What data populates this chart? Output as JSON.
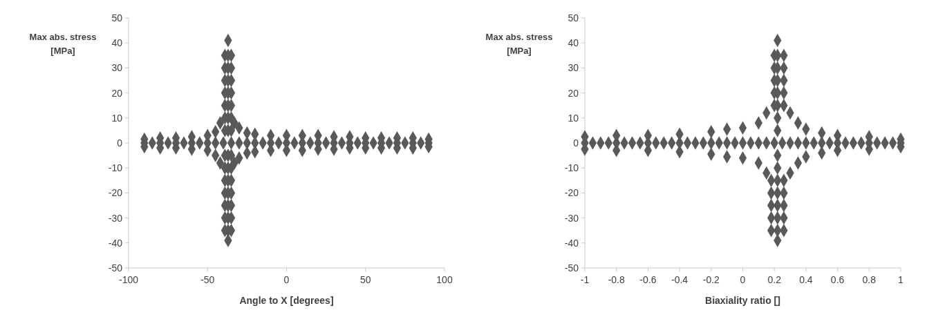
{
  "chart_data": [
    {
      "type": "scatter",
      "xlabel": "Angle to X [degrees]",
      "ylabel": "Max abs. stress\n[MPa]",
      "xlim": [
        -100,
        100
      ],
      "xticks": [
        -100,
        -50,
        0,
        50,
        100
      ],
      "ylim": [
        -50,
        50
      ],
      "yticks": [
        -50,
        -40,
        -30,
        -20,
        -10,
        0,
        10,
        20,
        30,
        40,
        50
      ],
      "grid": false,
      "marker": "diamond",
      "series": [
        {
          "color": "#595959",
          "x": [
            -90,
            -85,
            -80,
            -75,
            -70,
            -65,
            -60,
            -55,
            -50,
            -45,
            -40,
            -35,
            -30,
            -25,
            -20,
            -15,
            -10,
            -5,
            0,
            5,
            10,
            15,
            20,
            25,
            30,
            35,
            40,
            45,
            50,
            55,
            60,
            65,
            70,
            75,
            80,
            85,
            90,
            -90,
            -80,
            -70,
            -60,
            -50,
            -45,
            -30,
            -25,
            -20,
            -10,
            0,
            10,
            20,
            30,
            40,
            50,
            60,
            70,
            80,
            90,
            -90,
            -80,
            -70,
            -60,
            -50,
            -45,
            -30,
            -25,
            -20,
            -10,
            0,
            10,
            20,
            30,
            40,
            50,
            60,
            70,
            80,
            90,
            -39,
            -37,
            -35,
            -39,
            -37,
            -35,
            -39,
            -37,
            -35,
            -39,
            -37,
            -35,
            -39,
            -37,
            -35,
            -39,
            -37,
            -35,
            -39,
            -37,
            -35,
            -37,
            -39,
            -37,
            -35,
            -39,
            -37,
            -35,
            -39,
            -37,
            -35,
            -39,
            -37,
            -35,
            -39,
            -37,
            -35,
            -39,
            -37,
            -35,
            -39,
            -37,
            -35,
            -37,
            -42,
            -33,
            -42,
            -33
          ],
          "values": [
            0,
            0,
            0,
            0,
            0,
            0,
            0,
            0,
            0,
            0,
            0,
            0,
            0,
            0,
            0,
            0,
            0,
            0,
            0,
            0,
            0,
            0,
            0,
            0,
            0,
            0,
            0,
            0,
            0,
            0,
            0,
            0,
            0,
            0,
            0,
            0,
            0,
            1.5,
            2,
            2,
            2.5,
            3,
            4.5,
            6,
            4,
            3.5,
            3,
            3,
            3,
            3,
            2.5,
            2.5,
            2,
            2,
            2,
            2,
            1.5,
            -1.5,
            -2,
            -2,
            -2.5,
            -3,
            -5,
            -6,
            -4,
            -3.5,
            -3,
            -3,
            -3,
            -2.5,
            -2.5,
            -2,
            -2,
            -2,
            -2,
            -2,
            -1.5,
            5,
            5,
            5,
            10,
            10,
            10,
            15,
            15,
            15,
            20,
            20,
            20,
            25,
            25,
            25,
            30,
            30,
            30,
            35,
            35,
            35,
            41,
            -5,
            -5,
            -5,
            -10,
            -10,
            -10,
            -15,
            -15,
            -15,
            -20,
            -20,
            -20,
            -25,
            -25,
            -25,
            -30,
            -30,
            -30,
            -35,
            -35,
            -35,
            -39,
            8,
            8,
            -8,
            -8
          ]
        }
      ]
    },
    {
      "type": "scatter",
      "xlabel": "Biaxiality  ratio []",
      "ylabel": "Max abs. stress\n[MPa]",
      "xlim": [
        -1,
        1
      ],
      "xticks": [
        -1,
        -0.8,
        -0.6,
        -0.4,
        -0.2,
        0,
        0.2,
        0.4,
        0.6,
        0.8,
        1
      ],
      "ylim": [
        -50,
        50
      ],
      "yticks": [
        -50,
        -40,
        -30,
        -20,
        -10,
        0,
        10,
        20,
        30,
        40,
        50
      ],
      "grid": false,
      "marker": "diamond",
      "series": [
        {
          "color": "#595959",
          "x": [
            -1,
            -0.95,
            -0.9,
            -0.85,
            -0.8,
            -0.75,
            -0.7,
            -0.65,
            -0.6,
            -0.55,
            -0.5,
            -0.45,
            -0.4,
            -0.35,
            -0.3,
            -0.25,
            -0.2,
            -0.15,
            -0.1,
            -0.05,
            0,
            0.05,
            0.1,
            0.15,
            0.2,
            0.25,
            0.3,
            0.35,
            0.4,
            0.45,
            0.5,
            0.55,
            0.6,
            0.65,
            0.7,
            0.75,
            0.8,
            0.85,
            0.9,
            0.95,
            1,
            -1,
            -0.8,
            -0.6,
            -0.4,
            -0.2,
            -0.1,
            0,
            0.1,
            0.15,
            0.3,
            0.35,
            0.4,
            0.5,
            0.6,
            0.8,
            1,
            -1,
            -0.8,
            -0.6,
            -0.4,
            -0.2,
            -0.1,
            0,
            0.1,
            0.15,
            0.3,
            0.35,
            0.4,
            0.5,
            0.6,
            0.8,
            1,
            0.22,
            0.22,
            0.22,
            0.22,
            0.2,
            0.22,
            0.26,
            0.2,
            0.22,
            0.26,
            0.2,
            0.22,
            0.26,
            0.2,
            0.22,
            0.26,
            0.2,
            0.22,
            0.26,
            0.22,
            0.18,
            0.22,
            0.26,
            0.18,
            0.22,
            0.26,
            0.18,
            0.22,
            0.26,
            0.18,
            0.22,
            0.26,
            0.18,
            0.22,
            0.26,
            0.22
          ],
          "values": [
            0,
            0,
            0,
            0,
            0,
            0,
            0,
            0,
            0,
            0,
            0,
            0,
            0,
            0,
            0,
            0,
            0,
            0,
            0,
            0,
            0,
            0,
            0,
            0,
            0,
            0,
            0,
            0,
            0,
            0,
            0,
            0,
            0,
            0,
            0,
            0,
            0,
            0,
            0,
            0,
            0,
            2.5,
            3,
            3,
            3.5,
            4.5,
            5.5,
            6,
            8,
            12,
            12,
            8,
            5.5,
            4,
            3,
            2.5,
            1.5,
            -2.5,
            -3,
            -3,
            -3.5,
            -4.5,
            -5.5,
            -6,
            -8,
            -12,
            -12,
            -8,
            -5.5,
            -4,
            -3,
            -2.5,
            -1.5,
            5,
            10,
            -5,
            -10,
            15,
            15,
            15,
            20,
            20,
            20,
            25,
            25,
            25,
            30,
            30,
            30,
            35,
            35,
            35,
            41,
            -15,
            -15,
            -15,
            -20,
            -20,
            -20,
            -25,
            -25,
            -25,
            -30,
            -30,
            -30,
            -35,
            -35,
            -35,
            -39
          ]
        }
      ]
    }
  ]
}
